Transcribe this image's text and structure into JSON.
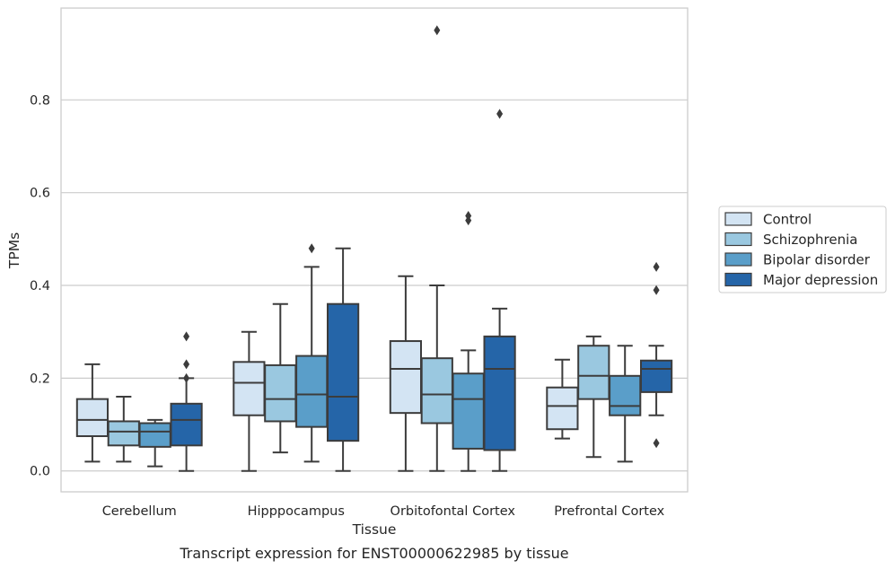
{
  "chart_data": {
    "type": "boxplot",
    "title": "",
    "caption": "Transcript expression for ENST00000622985 by tissue",
    "xlabel": "Tissue",
    "ylabel": "TPMs",
    "ylim": [
      -0.045,
      0.998
    ],
    "yticks": [
      0.0,
      0.2,
      0.4,
      0.6,
      0.8
    ],
    "ytick_labels": [
      "0.0",
      "0.2",
      "0.4",
      "0.6",
      "0.8"
    ],
    "grid": "y",
    "legend_position": "right",
    "categories": [
      "Cerebellum",
      "Hipppocampus",
      "Orbitofontal Cortex",
      "Prefrontal Cortex"
    ],
    "series": [
      {
        "name": "Control",
        "color": "#d3e4f3",
        "boxes": [
          {
            "whislo": 0.02,
            "q1": 0.075,
            "med": 0.11,
            "q3": 0.155,
            "whishi": 0.23,
            "fliers": []
          },
          {
            "whislo": 0.0,
            "q1": 0.12,
            "med": 0.19,
            "q3": 0.235,
            "whishi": 0.3,
            "fliers": []
          },
          {
            "whislo": 0.0,
            "q1": 0.125,
            "med": 0.22,
            "q3": 0.28,
            "whishi": 0.42,
            "fliers": []
          },
          {
            "whislo": 0.07,
            "q1": 0.09,
            "med": 0.14,
            "q3": 0.18,
            "whishi": 0.24,
            "fliers": []
          }
        ]
      },
      {
        "name": "Schizophrenia",
        "color": "#9ac8e0",
        "boxes": [
          {
            "whislo": 0.02,
            "q1": 0.055,
            "med": 0.085,
            "q3": 0.107,
            "whishi": 0.16,
            "fliers": []
          },
          {
            "whislo": 0.04,
            "q1": 0.107,
            "med": 0.155,
            "q3": 0.228,
            "whishi": 0.36,
            "fliers": []
          },
          {
            "whislo": 0.0,
            "q1": 0.103,
            "med": 0.165,
            "q3": 0.243,
            "whishi": 0.4,
            "fliers": [
              0.95
            ]
          },
          {
            "whislo": 0.03,
            "q1": 0.155,
            "med": 0.205,
            "q3": 0.27,
            "whishi": 0.29,
            "fliers": []
          }
        ]
      },
      {
        "name": "Bipolar disorder",
        "color": "#5a9ec9",
        "boxes": [
          {
            "whislo": 0.01,
            "q1": 0.052,
            "med": 0.085,
            "q3": 0.103,
            "whishi": 0.11,
            "fliers": []
          },
          {
            "whislo": 0.02,
            "q1": 0.095,
            "med": 0.165,
            "q3": 0.248,
            "whishi": 0.44,
            "fliers": [
              0.48
            ]
          },
          {
            "whislo": 0.0,
            "q1": 0.048,
            "med": 0.155,
            "q3": 0.21,
            "whishi": 0.26,
            "fliers": [
              0.55,
              0.54
            ]
          },
          {
            "whislo": 0.02,
            "q1": 0.12,
            "med": 0.14,
            "q3": 0.205,
            "whishi": 0.27,
            "fliers": []
          }
        ]
      },
      {
        "name": "Major depression",
        "color": "#2565a8",
        "boxes": [
          {
            "whislo": 0.0,
            "q1": 0.055,
            "med": 0.11,
            "q3": 0.145,
            "whishi": 0.2,
            "fliers": [
              0.29,
              0.23,
              0.2
            ]
          },
          {
            "whislo": 0.0,
            "q1": 0.065,
            "med": 0.16,
            "q3": 0.36,
            "whishi": 0.48,
            "fliers": []
          },
          {
            "whislo": 0.0,
            "q1": 0.045,
            "med": 0.22,
            "q3": 0.29,
            "whishi": 0.35,
            "fliers": [
              0.77
            ]
          },
          {
            "whislo": 0.12,
            "q1": 0.17,
            "med": 0.22,
            "q3": 0.238,
            "whishi": 0.27,
            "fliers": [
              0.44,
              0.39,
              0.06
            ]
          }
        ]
      }
    ]
  }
}
